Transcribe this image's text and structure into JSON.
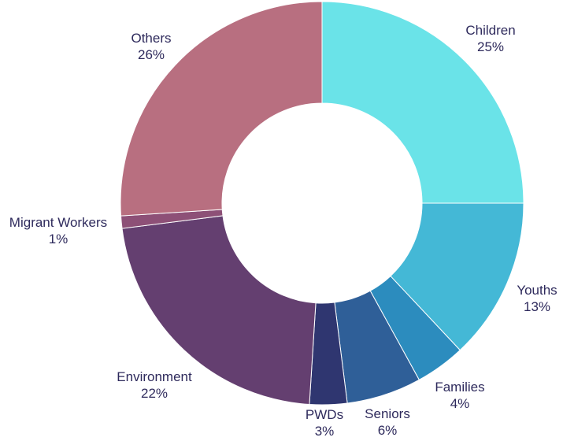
{
  "chart_data": {
    "type": "pie",
    "variant": "donut",
    "title": "",
    "slices": [
      {
        "label": "Children",
        "value": 25,
        "value_label": "25%",
        "color": "#6ae3e8"
      },
      {
        "label": "Youths",
        "value": 13,
        "value_label": "13%",
        "color": "#44b8d6"
      },
      {
        "label": "Families",
        "value": 4,
        "value_label": "4%",
        "color": "#2c8cbe"
      },
      {
        "label": "Seniors",
        "value": 6,
        "value_label": "6%",
        "color": "#2f5f98"
      },
      {
        "label": "PWDs",
        "value": 3,
        "value_label": "3%",
        "color": "#2f3670"
      },
      {
        "label": "Environment",
        "value": 22,
        "value_label": "22%",
        "color": "#643f70"
      },
      {
        "label": "Migrant Workers",
        "value": 1,
        "value_label": "1%",
        "color": "#8d5077"
      },
      {
        "label": "Others",
        "value": 26,
        "value_label": "26%",
        "color": "#b86f80"
      }
    ],
    "start": "12 o'clock",
    "direction": "clockwise",
    "legend": "none",
    "labels": "outside"
  }
}
